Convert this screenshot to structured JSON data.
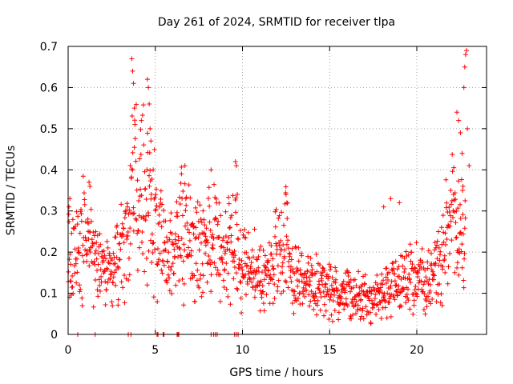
{
  "chart_data": {
    "type": "scatter",
    "title": "Day 261 of 2024, SRMTID for receiver tlpa",
    "xlabel": "GPS time / hours",
    "ylabel": "SRMTID / TECUs",
    "xlim": [
      0,
      24
    ],
    "ylim": [
      0,
      0.7
    ],
    "x_ticks": [
      "0",
      "5",
      "10",
      "15",
      "20"
    ],
    "x_tick_values": [
      0,
      5,
      10,
      15,
      20
    ],
    "y_ticks": [
      "0",
      "0.1",
      "0.2",
      "0.3",
      "0.4",
      "0.5",
      "0.6",
      "0.7"
    ],
    "y_tick_values": [
      0,
      0.1,
      0.2,
      0.3,
      0.4,
      0.5,
      0.6,
      0.7
    ],
    "grid": true,
    "marker": "+",
    "color": "#ff0000",
    "profile": [
      [
        0.0,
        0.21
      ],
      [
        0.5,
        0.2
      ],
      [
        1.0,
        0.23
      ],
      [
        1.5,
        0.2
      ],
      [
        2.0,
        0.15
      ],
      [
        2.5,
        0.13
      ],
      [
        3.0,
        0.2
      ],
      [
        3.5,
        0.24
      ],
      [
        3.8,
        0.35
      ],
      [
        4.2,
        0.38
      ],
      [
        4.6,
        0.36
      ],
      [
        5.0,
        0.28
      ],
      [
        5.5,
        0.22
      ],
      [
        6.0,
        0.18
      ],
      [
        6.5,
        0.26
      ],
      [
        7.0,
        0.22
      ],
      [
        7.5,
        0.21
      ],
      [
        8.0,
        0.2
      ],
      [
        8.5,
        0.25
      ],
      [
        9.0,
        0.18
      ],
      [
        9.5,
        0.24
      ],
      [
        10.0,
        0.17
      ],
      [
        10.5,
        0.16
      ],
      [
        11.0,
        0.14
      ],
      [
        11.5,
        0.15
      ],
      [
        12.0,
        0.19
      ],
      [
        12.5,
        0.22
      ],
      [
        13.0,
        0.13
      ],
      [
        13.5,
        0.13
      ],
      [
        14.0,
        0.12
      ],
      [
        15.0,
        0.11
      ],
      [
        15.5,
        0.09
      ],
      [
        16.0,
        0.1
      ],
      [
        17.0,
        0.09
      ],
      [
        17.5,
        0.08
      ],
      [
        18.0,
        0.1
      ],
      [
        18.5,
        0.12
      ],
      [
        19.0,
        0.13
      ],
      [
        19.5,
        0.13
      ],
      [
        20.0,
        0.16
      ],
      [
        20.5,
        0.12
      ],
      [
        21.0,
        0.17
      ],
      [
        21.5,
        0.18
      ],
      [
        22.0,
        0.28
      ],
      [
        22.5,
        0.25
      ],
      [
        22.8,
        0.23
      ]
    ],
    "spikes": [
      [
        3.65,
        0.67
      ],
      [
        3.7,
        0.64
      ],
      [
        3.75,
        0.61
      ],
      [
        3.8,
        0.55
      ],
      [
        4.2,
        0.52
      ],
      [
        4.55,
        0.62
      ],
      [
        4.6,
        0.6
      ],
      [
        4.65,
        0.56
      ],
      [
        4.7,
        0.5
      ],
      [
        4.75,
        0.47
      ],
      [
        6.7,
        0.41
      ],
      [
        6.5,
        0.39
      ],
      [
        8.2,
        0.4
      ],
      [
        9.6,
        0.42
      ],
      [
        9.65,
        0.41
      ],
      [
        12.5,
        0.34
      ],
      [
        12.55,
        0.32
      ],
      [
        18.1,
        0.31
      ],
      [
        18.5,
        0.33
      ],
      [
        19.0,
        0.32
      ],
      [
        22.3,
        0.54
      ],
      [
        22.4,
        0.52
      ],
      [
        22.5,
        0.49
      ],
      [
        22.85,
        0.69
      ],
      [
        22.8,
        0.68
      ],
      [
        22.75,
        0.65
      ],
      [
        22.7,
        0.6
      ],
      [
        22.9,
        0.5
      ],
      [
        22.6,
        0.44
      ],
      [
        23.0,
        0.41
      ],
      [
        22.65,
        0.36
      ],
      [
        0.1,
        0.33
      ],
      [
        0.05,
        0.31
      ],
      [
        1.2,
        0.37
      ],
      [
        1.25,
        0.36
      ]
    ],
    "zero_points": [
      0.55,
      1.55,
      3.45,
      3.6,
      5.1,
      5.15,
      5.45,
      5.5,
      6.25,
      6.3,
      6.35,
      8.2,
      8.35,
      8.45,
      8.55,
      9.55,
      9.65,
      9.75
    ]
  }
}
